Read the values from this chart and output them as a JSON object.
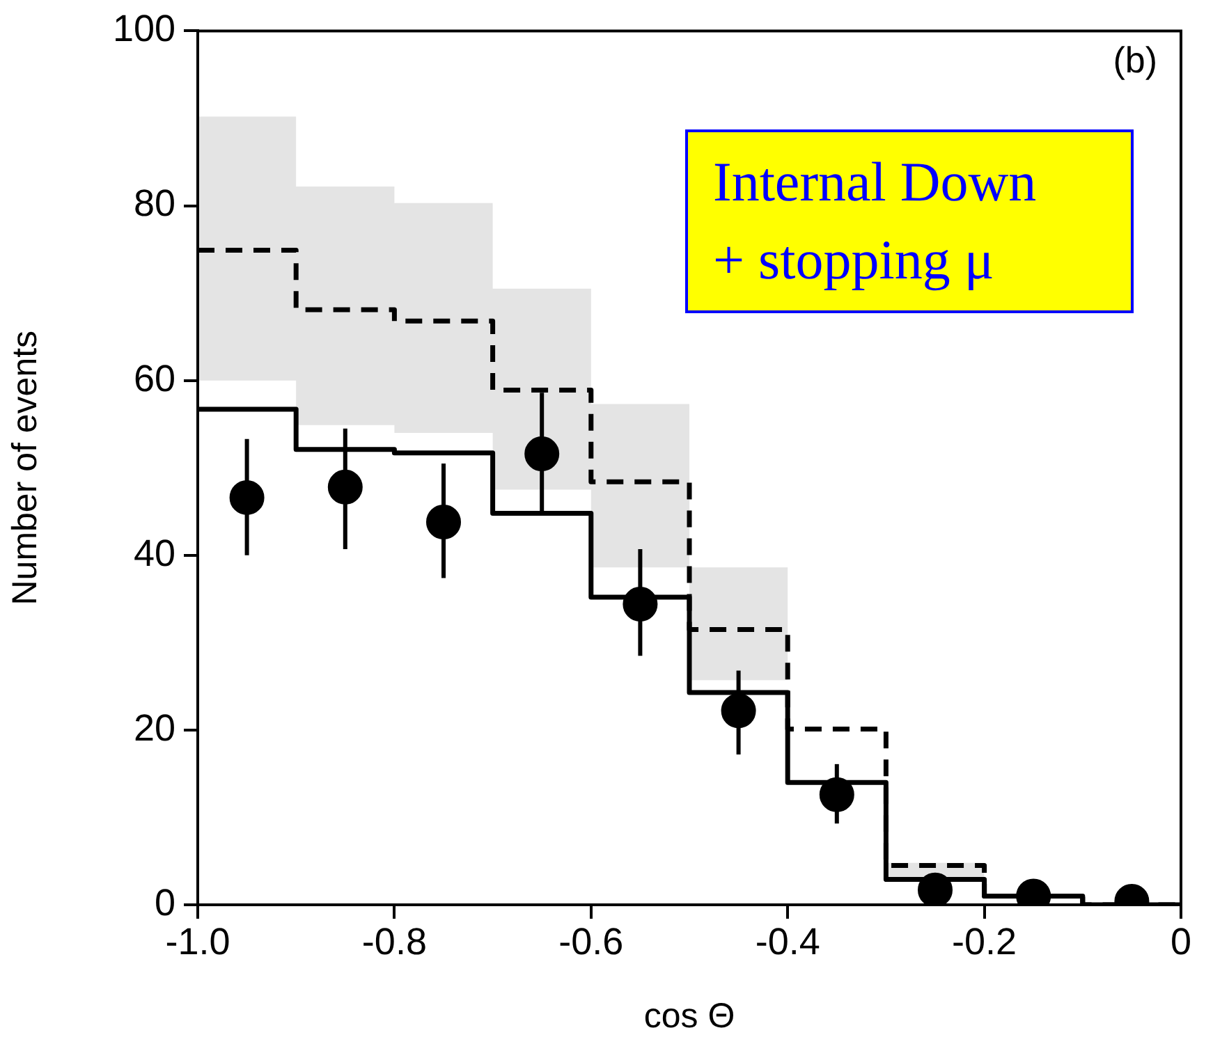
{
  "chart_data": {
    "type": "step",
    "xlabel": "cos Θ",
    "ylabel": "Number of events",
    "x": [
      -1.0,
      -0.9,
      -0.8,
      -0.7,
      -0.6,
      -0.5,
      -0.4,
      -0.3,
      -0.2,
      -0.1,
      0
    ],
    "xlim": [
      -1.0,
      0
    ],
    "xticks": [
      {
        "value": -1.0,
        "label": "-1.0"
      },
      {
        "value": -0.8,
        "label": "-0.8"
      },
      {
        "value": -0.6,
        "label": "-0.6"
      },
      {
        "value": -0.4,
        "label": "-0.4"
      },
      {
        "value": -0.2,
        "label": "-0.2"
      },
      0
    ],
    "ylim": [
      0,
      100
    ],
    "yticks": [
      0,
      20,
      40,
      60,
      80,
      100
    ],
    "grid": false,
    "legend": false,
    "annotations": [
      "(b)",
      "Internal Down\n+ stopping μ"
    ],
    "series": [
      {
        "color": "#000000",
        "line_style": "solid",
        "values": [
          56.7,
          52.1,
          51.7,
          44.8,
          35.2,
          24.3,
          14.0,
          2.9,
          1.0,
          0,
          0
        ]
      },
      {
        "color": "#000000",
        "line_style": "dashed",
        "values": [
          74.9,
          68.1,
          66.8,
          58.9,
          48.4,
          31.5,
          20.1,
          4.5,
          1.0,
          0,
          0
        ],
        "lower": [
          60.0,
          54.9,
          54.0,
          47.5,
          38.6,
          25.7,
          20.1,
          2.9,
          1.0,
          null,
          null
        ],
        "upper": [
          90.2,
          82.2,
          80.3,
          70.5,
          57.3,
          38.6,
          20.1,
          4.8,
          1.0,
          null,
          null
        ]
      },
      {
        "type": "scatter",
        "color": "#000000",
        "marker": "circle",
        "x": [
          -0.95,
          -0.85,
          -0.75,
          -0.65,
          -0.55,
          -0.45,
          -0.35,
          -0.25,
          -0.15,
          -0.05
        ],
        "values": [
          46.6,
          47.8,
          43.8,
          51.6,
          34.4,
          22.2,
          12.6,
          1.7,
          1.0,
          0.4
        ],
        "errors": [
          [
            40.0,
            53.3
          ],
          [
            40.7,
            54.5
          ],
          [
            37.4,
            50.5
          ],
          [
            44.9,
            58.6
          ],
          [
            28.5,
            40.7
          ],
          [
            17.2,
            26.8
          ],
          [
            9.3,
            16.1
          ],
          null,
          null,
          null
        ]
      }
    ]
  }
}
